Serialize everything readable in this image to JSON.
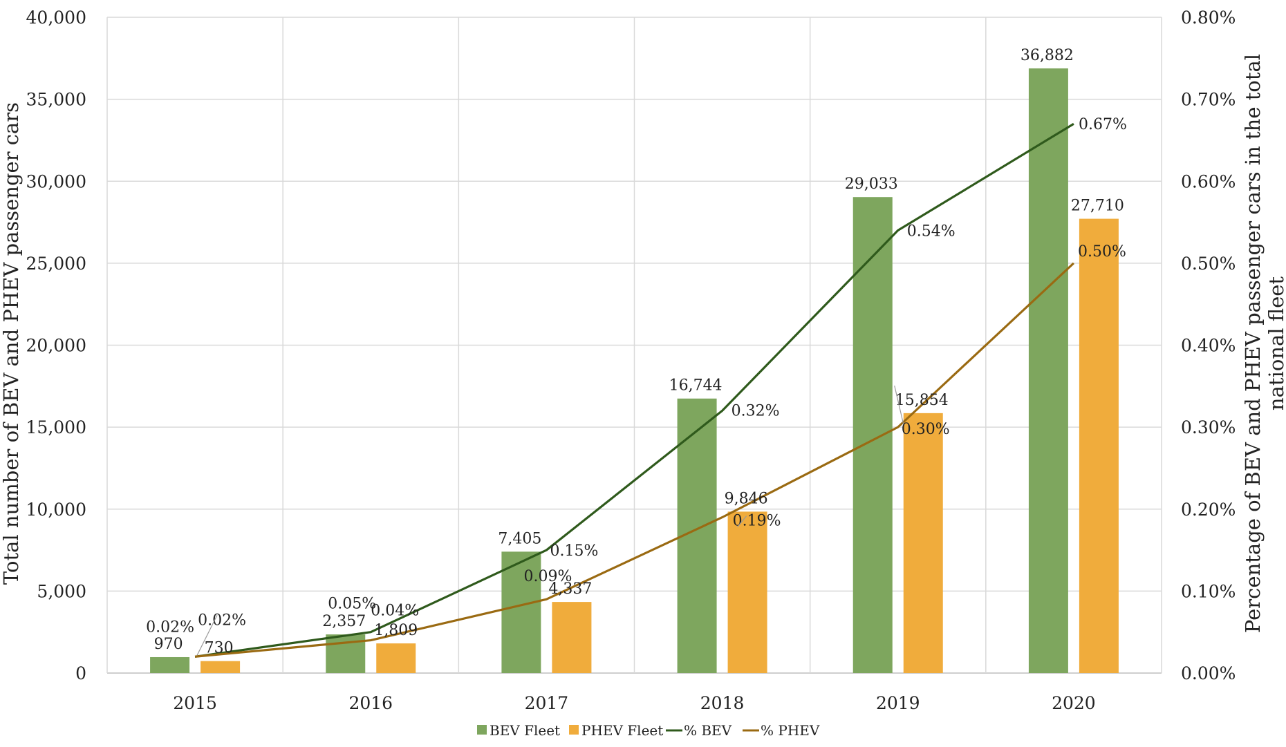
{
  "chart_data": {
    "type": "bar",
    "categories": [
      "2015",
      "2016",
      "2017",
      "2018",
      "2019",
      "2020"
    ],
    "series": [
      {
        "name": "BEV Fleet",
        "kind": "bar",
        "axis": "left",
        "color": "#7ea65e",
        "values": [
          970,
          2357,
          7405,
          16744,
          29033,
          36882
        ],
        "labels": [
          "970",
          "2,357",
          "7,405",
          "16,744",
          "29,033",
          "36,882"
        ]
      },
      {
        "name": "PHEV Fleet",
        "kind": "bar",
        "axis": "left",
        "color": "#f0ac3c",
        "values": [
          730,
          1809,
          4337,
          9846,
          15854,
          27710
        ],
        "labels": [
          "730",
          "1,809",
          "4,337",
          "9,846",
          "15,854",
          "27,710"
        ]
      },
      {
        "name": "% BEV",
        "kind": "line",
        "axis": "right",
        "color": "#2f5a1c",
        "values": [
          0.02,
          0.05,
          0.15,
          0.32,
          0.54,
          0.67
        ],
        "labels": [
          "0.02%",
          "0.05%",
          "0.15%",
          "0.32%",
          "0.54%",
          "0.67%"
        ]
      },
      {
        "name": "% PHEV",
        "kind": "line",
        "axis": "right",
        "color": "#9a6a12",
        "values": [
          0.02,
          0.04,
          0.09,
          0.19,
          0.3,
          0.5
        ],
        "labels": [
          "0.02%",
          "0.04%",
          "0.09%",
          "0.19%",
          "0.30%",
          "0.50%"
        ]
      }
    ],
    "y_left": {
      "label": "Total number of BEV and PHEV passenger cars",
      "range": [
        0,
        40000
      ],
      "ticks": [
        "0",
        "5,000",
        "10,000",
        "15,000",
        "20,000",
        "25,000",
        "30,000",
        "35,000",
        "40,000"
      ]
    },
    "y_right": {
      "label": "Percentage of BEV and PHEV passenger cars in the total national fleet",
      "range": [
        0,
        0.8
      ],
      "ticks": [
        "0.00%",
        "0.10%",
        "0.20%",
        "0.30%",
        "0.40%",
        "0.50%",
        "0.60%",
        "0.70%",
        "0.80%"
      ]
    },
    "grid": true,
    "legend": "bottom"
  }
}
